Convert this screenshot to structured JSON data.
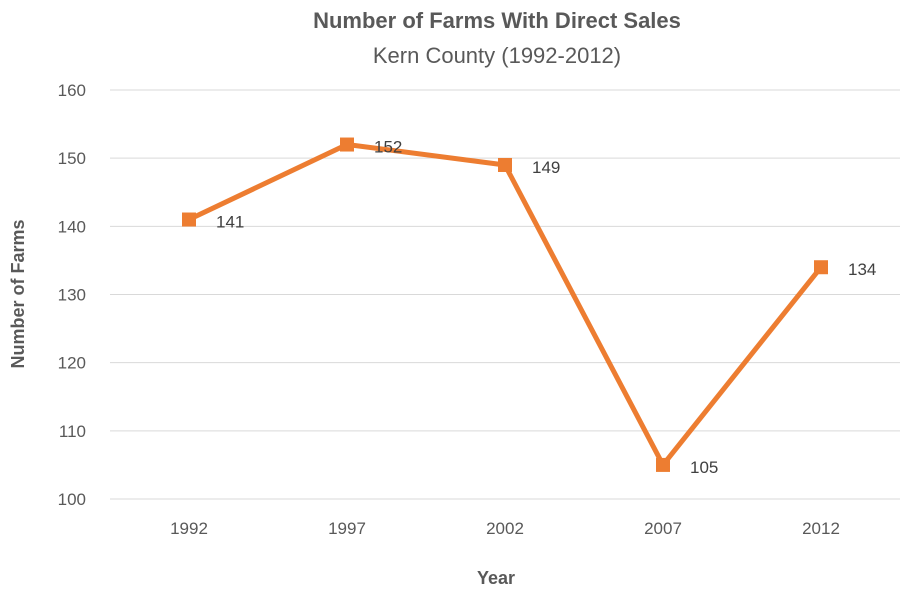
{
  "chart_data": {
    "type": "line",
    "title": "Number of Farms With Direct Sales",
    "subtitle": "Kern County (1992-2012)",
    "xlabel": "Year",
    "ylabel": "Number of Farms",
    "categories": [
      "1992",
      "1997",
      "2002",
      "2007",
      "2012"
    ],
    "series": [
      {
        "values": [
          141,
          152,
          149,
          105,
          134
        ]
      }
    ],
    "data_labels": [
      "141",
      "152",
      "149",
      "105",
      "134"
    ],
    "ylim": [
      100,
      160
    ],
    "yticks": [
      "100",
      "110",
      "120",
      "130",
      "140",
      "150",
      "160"
    ],
    "grid": "horizontal",
    "line_color": "#ED7D31",
    "grid_color": "#D9D9D9",
    "text_color": "#595959",
    "marker": "square"
  }
}
